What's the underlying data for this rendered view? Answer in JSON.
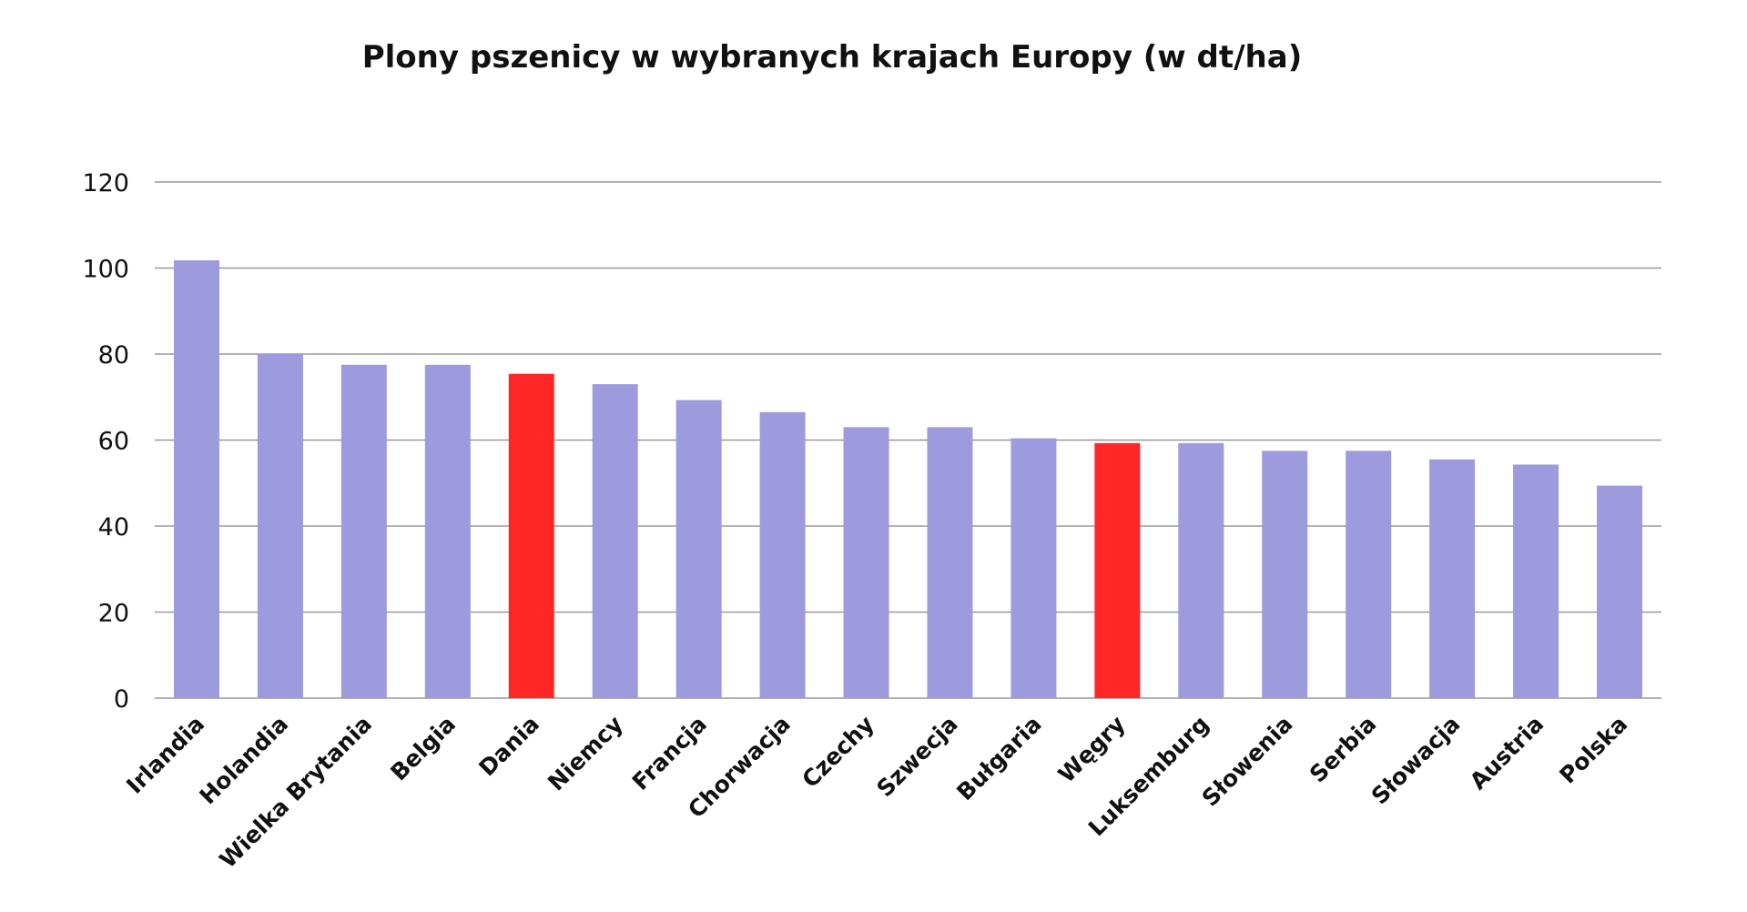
{
  "chart_data": {
    "type": "bar",
    "title": "Plony pszenicy w wybranych krajach Europy (w dt/ha)",
    "xlabel": "",
    "ylabel": "",
    "ylim": [
      0,
      120
    ],
    "yticks": [
      0,
      20,
      40,
      60,
      80,
      100,
      120
    ],
    "grid": true,
    "categories": [
      "Irlandia",
      "Holandia",
      "Wielka Brytania",
      "Belgia",
      "Dania",
      "Niemcy",
      "Francja",
      "Chorwacja",
      "Czechy",
      "Szwecja",
      "Bułgaria",
      "Węgry",
      "Luksemburg",
      "Słowenia",
      "Serbia",
      "Słowacja",
      "Austria",
      "Polska"
    ],
    "values": [
      101.8,
      80,
      77.5,
      77.5,
      75.4,
      73,
      69.3,
      66.5,
      63,
      63,
      60.4,
      59.3,
      59.3,
      57.5,
      57.5,
      55.5,
      54.3,
      49.4
    ],
    "highlighted": [
      "Dania",
      "Węgry"
    ],
    "colors": {
      "default": "#9d9add",
      "highlight": "#ff2626",
      "grid": "#999999"
    }
  }
}
